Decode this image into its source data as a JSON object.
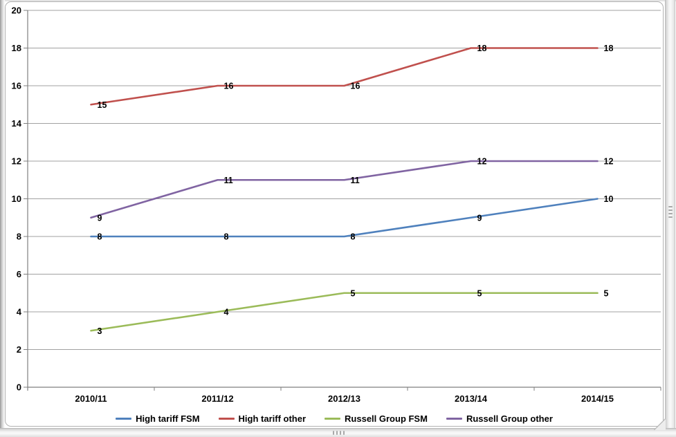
{
  "window": {
    "right_scrollbar_handle": "dots-handle",
    "bottom_scrollbar_handle": "dots-handle",
    "resize_grip": "diagonal-resize-grip"
  },
  "chart_data": {
    "type": "line",
    "title": "",
    "xlabel": "",
    "ylabel": "",
    "categories": [
      "2010/11",
      "2011/12",
      "2012/13",
      "2013/14",
      "2014/15"
    ],
    "series": [
      {
        "name": "High tariff FSM",
        "color": "#4F81BD",
        "values": [
          8,
          8,
          8,
          9,
          10
        ]
      },
      {
        "name": "High tariff other",
        "color": "#C0504D",
        "values": [
          15,
          16,
          16,
          18,
          18
        ]
      },
      {
        "name": "Russell Group FSM",
        "color": "#9BBB59",
        "values": [
          3,
          4,
          5,
          5,
          5
        ]
      },
      {
        "name": "Russell Group other",
        "color": "#8064A2",
        "values": [
          9,
          11,
          11,
          12,
          12
        ]
      }
    ],
    "ylim": [
      0,
      20
    ],
    "ytick_step": 2,
    "ytick_labels": [
      "0",
      "2",
      "4",
      "6",
      "8",
      "10",
      "12",
      "14",
      "16",
      "18",
      "20"
    ],
    "grid": true,
    "data_labels": true,
    "legend_position": "bottom",
    "colors": {
      "gridline": "#A0A0A0",
      "axis": "#7F7F7F",
      "label_text": "#000000"
    }
  }
}
